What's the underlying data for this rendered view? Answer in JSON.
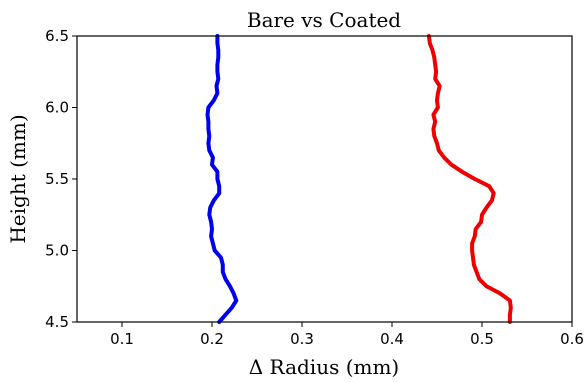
{
  "chart_data": {
    "type": "line",
    "title": "Bare vs Coated",
    "xlabel": "Δ Radius (mm)",
    "ylabel": "Height (mm)",
    "xlim": [
      0.05,
      0.6
    ],
    "ylim": [
      4.5,
      6.5
    ],
    "xticks": [
      "0.1",
      "0.2",
      "0.3",
      "0.4",
      "0.5",
      "0.6"
    ],
    "yticks": [
      "4.5",
      "5.0",
      "5.5",
      "6.0",
      "6.5"
    ],
    "grid": false,
    "series": [
      {
        "color": "#0000ee",
        "points": [
          [
            0.208,
            4.5
          ],
          [
            0.215,
            4.55
          ],
          [
            0.222,
            4.6
          ],
          [
            0.227,
            4.65
          ],
          [
            0.224,
            4.7
          ],
          [
            0.22,
            4.75
          ],
          [
            0.215,
            4.8
          ],
          [
            0.212,
            4.85
          ],
          [
            0.212,
            4.9
          ],
          [
            0.21,
            4.95
          ],
          [
            0.203,
            5.0
          ],
          [
            0.201,
            5.05
          ],
          [
            0.199,
            5.1
          ],
          [
            0.2,
            5.15
          ],
          [
            0.199,
            5.2
          ],
          [
            0.197,
            5.25
          ],
          [
            0.198,
            5.3
          ],
          [
            0.202,
            5.35
          ],
          [
            0.208,
            5.4
          ],
          [
            0.208,
            5.45
          ],
          [
            0.206,
            5.5
          ],
          [
            0.206,
            5.55
          ],
          [
            0.2,
            5.6
          ],
          [
            0.201,
            5.65
          ],
          [
            0.197,
            5.7
          ],
          [
            0.196,
            5.75
          ],
          [
            0.197,
            5.8
          ],
          [
            0.196,
            5.85
          ],
          [
            0.196,
            5.9
          ],
          [
            0.195,
            5.95
          ],
          [
            0.196,
            6.0
          ],
          [
            0.202,
            6.05
          ],
          [
            0.206,
            6.1
          ],
          [
            0.205,
            6.15
          ],
          [
            0.207,
            6.2
          ],
          [
            0.206,
            6.25
          ],
          [
            0.206,
            6.3
          ],
          [
            0.207,
            6.35
          ],
          [
            0.207,
            6.4
          ],
          [
            0.206,
            6.45
          ],
          [
            0.206,
            6.5
          ]
        ]
      },
      {
        "color": "#ee0000",
        "points": [
          [
            0.531,
            4.5
          ],
          [
            0.531,
            4.55
          ],
          [
            0.532,
            4.6
          ],
          [
            0.531,
            4.65
          ],
          [
            0.52,
            4.7
          ],
          [
            0.505,
            4.75
          ],
          [
            0.497,
            4.8
          ],
          [
            0.494,
            4.85
          ],
          [
            0.491,
            4.9
          ],
          [
            0.49,
            4.95
          ],
          [
            0.489,
            5.0
          ],
          [
            0.489,
            5.05
          ],
          [
            0.492,
            5.1
          ],
          [
            0.493,
            5.15
          ],
          [
            0.499,
            5.2
          ],
          [
            0.5,
            5.25
          ],
          [
            0.505,
            5.3
          ],
          [
            0.511,
            5.35
          ],
          [
            0.513,
            5.4
          ],
          [
            0.508,
            5.45
          ],
          [
            0.492,
            5.5
          ],
          [
            0.478,
            5.55
          ],
          [
            0.466,
            5.6
          ],
          [
            0.458,
            5.65
          ],
          [
            0.452,
            5.7
          ],
          [
            0.45,
            5.75
          ],
          [
            0.447,
            5.8
          ],
          [
            0.446,
            5.85
          ],
          [
            0.448,
            5.9
          ],
          [
            0.446,
            5.95
          ],
          [
            0.451,
            6.0
          ],
          [
            0.45,
            6.05
          ],
          [
            0.451,
            6.1
          ],
          [
            0.453,
            6.15
          ],
          [
            0.448,
            6.2
          ],
          [
            0.449,
            6.25
          ],
          [
            0.448,
            6.3
          ],
          [
            0.447,
            6.35
          ],
          [
            0.445,
            6.4
          ],
          [
            0.442,
            6.45
          ],
          [
            0.441,
            6.5
          ]
        ]
      }
    ]
  }
}
